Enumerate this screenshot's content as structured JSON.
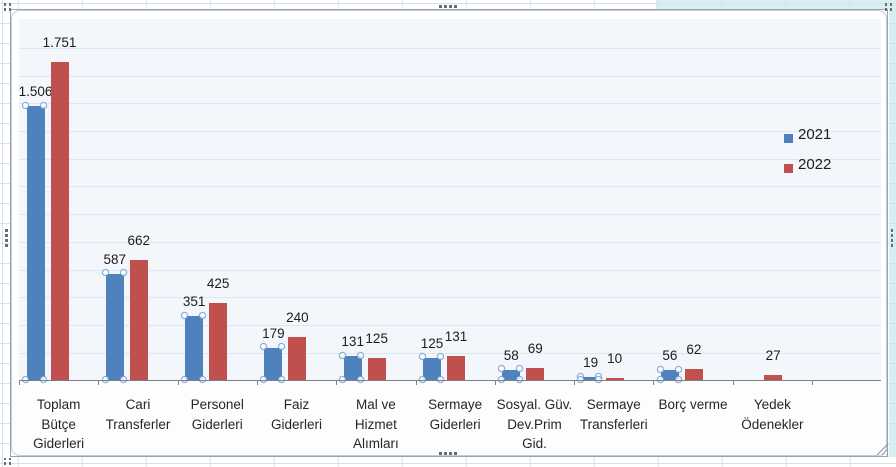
{
  "chart_data": {
    "type": "bar",
    "title": "",
    "categories": [
      {
        "label": "Toplam\nBütçe\nGiderleri"
      },
      {
        "label": "Cari\nTransferler"
      },
      {
        "label": "Personel\nGiderleri"
      },
      {
        "label": "Faiz\nGiderleri"
      },
      {
        "label": "Mal ve\nHizmet\nAlımları"
      },
      {
        "label": "Sermaye\nGiderleri"
      },
      {
        "label": "Sosyal. Güv.\nDev.Prim\nGid."
      },
      {
        "label": "Sermaye\nTransferleri"
      },
      {
        "label": "Borç verme"
      },
      {
        "label": "Yedek\nÖdenekler"
      }
    ],
    "series": [
      {
        "name": "2021",
        "color": "#4f81bd",
        "selected": true,
        "values": [
          1506,
          587,
          351,
          179,
          131,
          125,
          58,
          19,
          56,
          null
        ],
        "labels": [
          "1.506",
          "587",
          "351",
          "179",
          "131",
          "125",
          "58",
          "19",
          "56",
          ""
        ]
      },
      {
        "name": "2022",
        "color": "#c0504d",
        "selected": false,
        "values": [
          1751,
          662,
          425,
          240,
          125,
          131,
          69,
          10,
          62,
          27
        ],
        "labels": [
          "1.751",
          "662",
          "425",
          "240",
          "125",
          "131",
          "69",
          "10",
          "62",
          "27"
        ]
      }
    ],
    "ylim": [
      0,
      1950
    ],
    "major_unit": 150,
    "grid": true,
    "value_axis_labels_visible": false,
    "legend_position": "right",
    "data_labels": "outside-end"
  },
  "app": {
    "context": "spreadsheet-embedded-chart",
    "chart_selected": true
  }
}
